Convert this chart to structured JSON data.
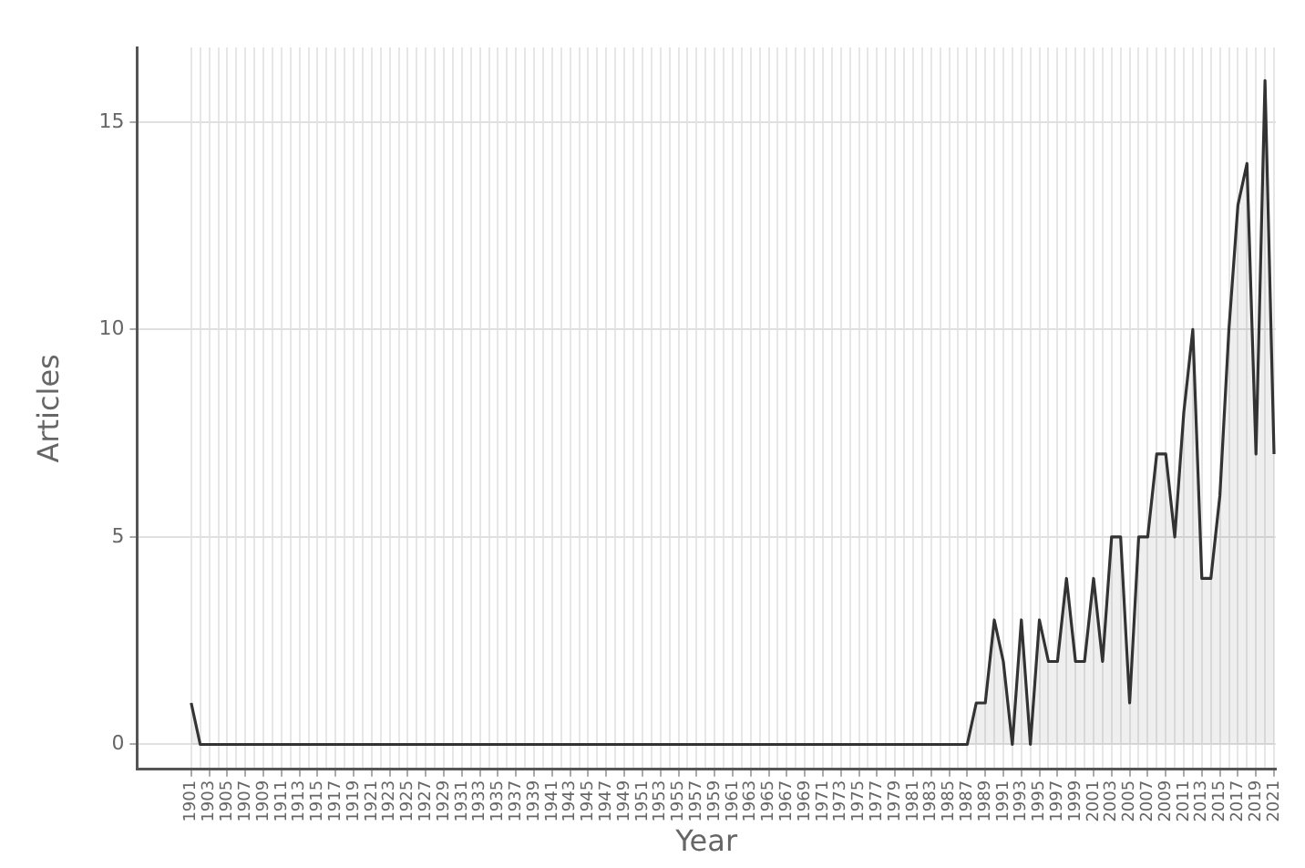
{
  "chart_data": {
    "type": "area",
    "xlabel": "Year",
    "ylabel": "Articles",
    "categories": [
      "1901",
      null,
      "1903",
      null,
      "1905",
      null,
      "1907",
      null,
      "1909",
      null,
      "1911",
      null,
      "1913",
      null,
      "1915",
      null,
      "1917",
      null,
      "1919",
      null,
      "1921",
      null,
      "1923",
      null,
      "1925",
      null,
      "1927",
      null,
      "1929",
      null,
      "1931",
      null,
      "1933",
      null,
      "1935",
      null,
      "1937",
      null,
      "1939",
      null,
      "1941",
      null,
      "1943",
      null,
      "1945",
      null,
      "1947",
      null,
      "1949",
      null,
      "1951",
      null,
      "1953",
      null,
      "1955",
      null,
      "1957",
      null,
      "1959",
      null,
      "1961",
      null,
      "1963",
      null,
      "1965",
      null,
      "1967",
      null,
      "1969",
      null,
      "1971",
      null,
      "1973",
      null,
      "1975",
      null,
      "1977",
      null,
      "1979",
      null,
      "1981",
      null,
      "1983",
      null,
      "1985",
      null,
      "1987",
      null,
      "1989",
      null,
      "1991",
      null,
      "1993",
      null,
      "1995",
      null,
      "1997",
      null,
      "1999",
      null,
      "2001",
      null,
      "2003",
      null,
      "2005",
      null,
      "2007",
      null,
      "2009",
      null,
      "2011",
      null,
      "2013",
      null,
      "2015",
      null,
      "2017",
      null,
      "2019",
      null,
      "2021"
    ],
    "series": [
      {
        "color": "#333333",
        "values": [
          1,
          0,
          0,
          0,
          0,
          0,
          0,
          0,
          0,
          0,
          0,
          0,
          0,
          0,
          0,
          0,
          0,
          0,
          0,
          0,
          0,
          0,
          0,
          0,
          0,
          0,
          0,
          0,
          0,
          0,
          0,
          0,
          0,
          0,
          0,
          0,
          0,
          0,
          0,
          0,
          0,
          0,
          0,
          0,
          0,
          0,
          0,
          0,
          0,
          0,
          0,
          0,
          0,
          0,
          0,
          0,
          0,
          0,
          0,
          0,
          0,
          0,
          0,
          0,
          0,
          0,
          0,
          0,
          0,
          0,
          0,
          0,
          0,
          0,
          0,
          0,
          0,
          0,
          0,
          0,
          0,
          0,
          0,
          0,
          0,
          0,
          0,
          1,
          1,
          3,
          2,
          0,
          3,
          0,
          3,
          2,
          2,
          4,
          2,
          2,
          4,
          2,
          5,
          5,
          1,
          5,
          5,
          7,
          7,
          5,
          8,
          10,
          4,
          4,
          6,
          10,
          13,
          14,
          7,
          16,
          7
        ]
      }
    ],
    "ylim": [
      -0.6,
      16.8
    ],
    "yticks": [
      0,
      5,
      10,
      15
    ],
    "grid": true,
    "marker": "none",
    "line_style": "solid",
    "legend": false
  }
}
